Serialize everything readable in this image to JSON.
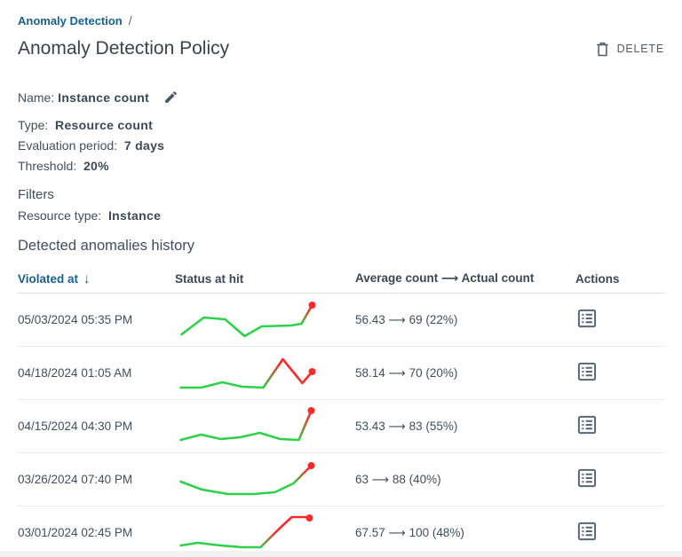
{
  "breadcrumb": {
    "current": "Anomaly Detection",
    "separator": "/"
  },
  "header": {
    "title": "Anomaly Detection Policy",
    "delete_button": "DELETE"
  },
  "details": {
    "name_label": "Name:",
    "name_value": "Instance count",
    "type_label": "Type:",
    "type_value": "Resource count",
    "evaluation_label": "Evaluation period:",
    "evaluation_value": "7 days",
    "threshold_label": "Threshold:",
    "threshold_value": "20%"
  },
  "filters": {
    "heading": "Filters",
    "resource_type_label": "Resource type:",
    "resource_type_value": "Instance"
  },
  "history": {
    "heading": "Detected anomalies history",
    "columns": {
      "violated_at": "Violated at",
      "status": "Status at hit",
      "counts": "Average count ⟶ Actual count",
      "actions": "Actions"
    },
    "sort_icon": "↓",
    "arrow": "⟶",
    "rows": [
      {
        "violated_at": "05/03/2024 05:35 PM",
        "average_count": "56.43",
        "actual_count": "69",
        "change_pct": "22%",
        "spark": {
          "normal": [
            [
              5,
              42
            ],
            [
              30,
              23
            ],
            [
              54,
              25
            ],
            [
              76,
              44
            ],
            [
              95,
              33
            ],
            [
              128,
              32
            ],
            [
              140,
              30
            ]
          ],
          "anomaly": [
            [
              140,
              30
            ],
            [
              152,
              9
            ]
          ],
          "dot": [
            152,
            9
          ]
        }
      },
      {
        "violated_at": "04/18/2024 01:05 AM",
        "average_count": "58.14",
        "actual_count": "70",
        "change_pct": "20%",
        "spark": {
          "normal": [
            [
              4,
              42
            ],
            [
              27,
              42
            ],
            [
              51,
              36
            ],
            [
              73,
              41
            ],
            [
              97,
              42
            ]
          ],
          "anomaly": [
            [
              97,
              42
            ],
            [
              119,
              10
            ],
            [
              141,
              37
            ],
            [
              152,
              24
            ]
          ],
          "dot": [
            152,
            24
          ]
        }
      },
      {
        "violated_at": "04/15/2024 04:30 PM",
        "average_count": "53.43",
        "actual_count": "83",
        "change_pct": "55%",
        "spark": {
          "normal": [
            [
              4,
              41
            ],
            [
              27,
              35
            ],
            [
              49,
              40
            ],
            [
              71,
              38
            ],
            [
              93,
              33
            ],
            [
              116,
              40
            ],
            [
              137,
              41
            ]
          ],
          "anomaly": [
            [
              137,
              41
            ],
            [
              151,
              8
            ]
          ],
          "dot": [
            151,
            8
          ]
        }
      },
      {
        "violated_at": "03/26/2024 07:40 PM",
        "average_count": "63",
        "actual_count": "88",
        "change_pct": "40%",
        "spark": {
          "normal": [
            [
              4,
              28
            ],
            [
              28,
              37
            ],
            [
              57,
              42
            ],
            [
              86,
              42
            ],
            [
              110,
              40
            ],
            [
              131,
              30
            ]
          ],
          "anomaly": [
            [
              131,
              30
            ],
            [
              151,
              10
            ]
          ],
          "dot": [
            151,
            10
          ]
        }
      },
      {
        "violated_at": "03/01/2024 02:45 PM",
        "average_count": "67.57",
        "actual_count": "100",
        "change_pct": "48%",
        "spark": {
          "normal": [
            [
              4,
              40
            ],
            [
              23,
              37
            ],
            [
              49,
              40
            ],
            [
              73,
              42
            ],
            [
              94,
              42
            ]
          ],
          "anomaly": [
            [
              94,
              42
            ],
            [
              114,
              22
            ],
            [
              129,
              8
            ],
            [
              148,
              8
            ]
          ],
          "dot": [
            149,
            9
          ]
        }
      }
    ]
  },
  "colors": {
    "accent_blue": "#17618f",
    "normal_green": "#2fd04a",
    "anomaly_red": "#fb2b2b",
    "text": "#414e5c"
  }
}
